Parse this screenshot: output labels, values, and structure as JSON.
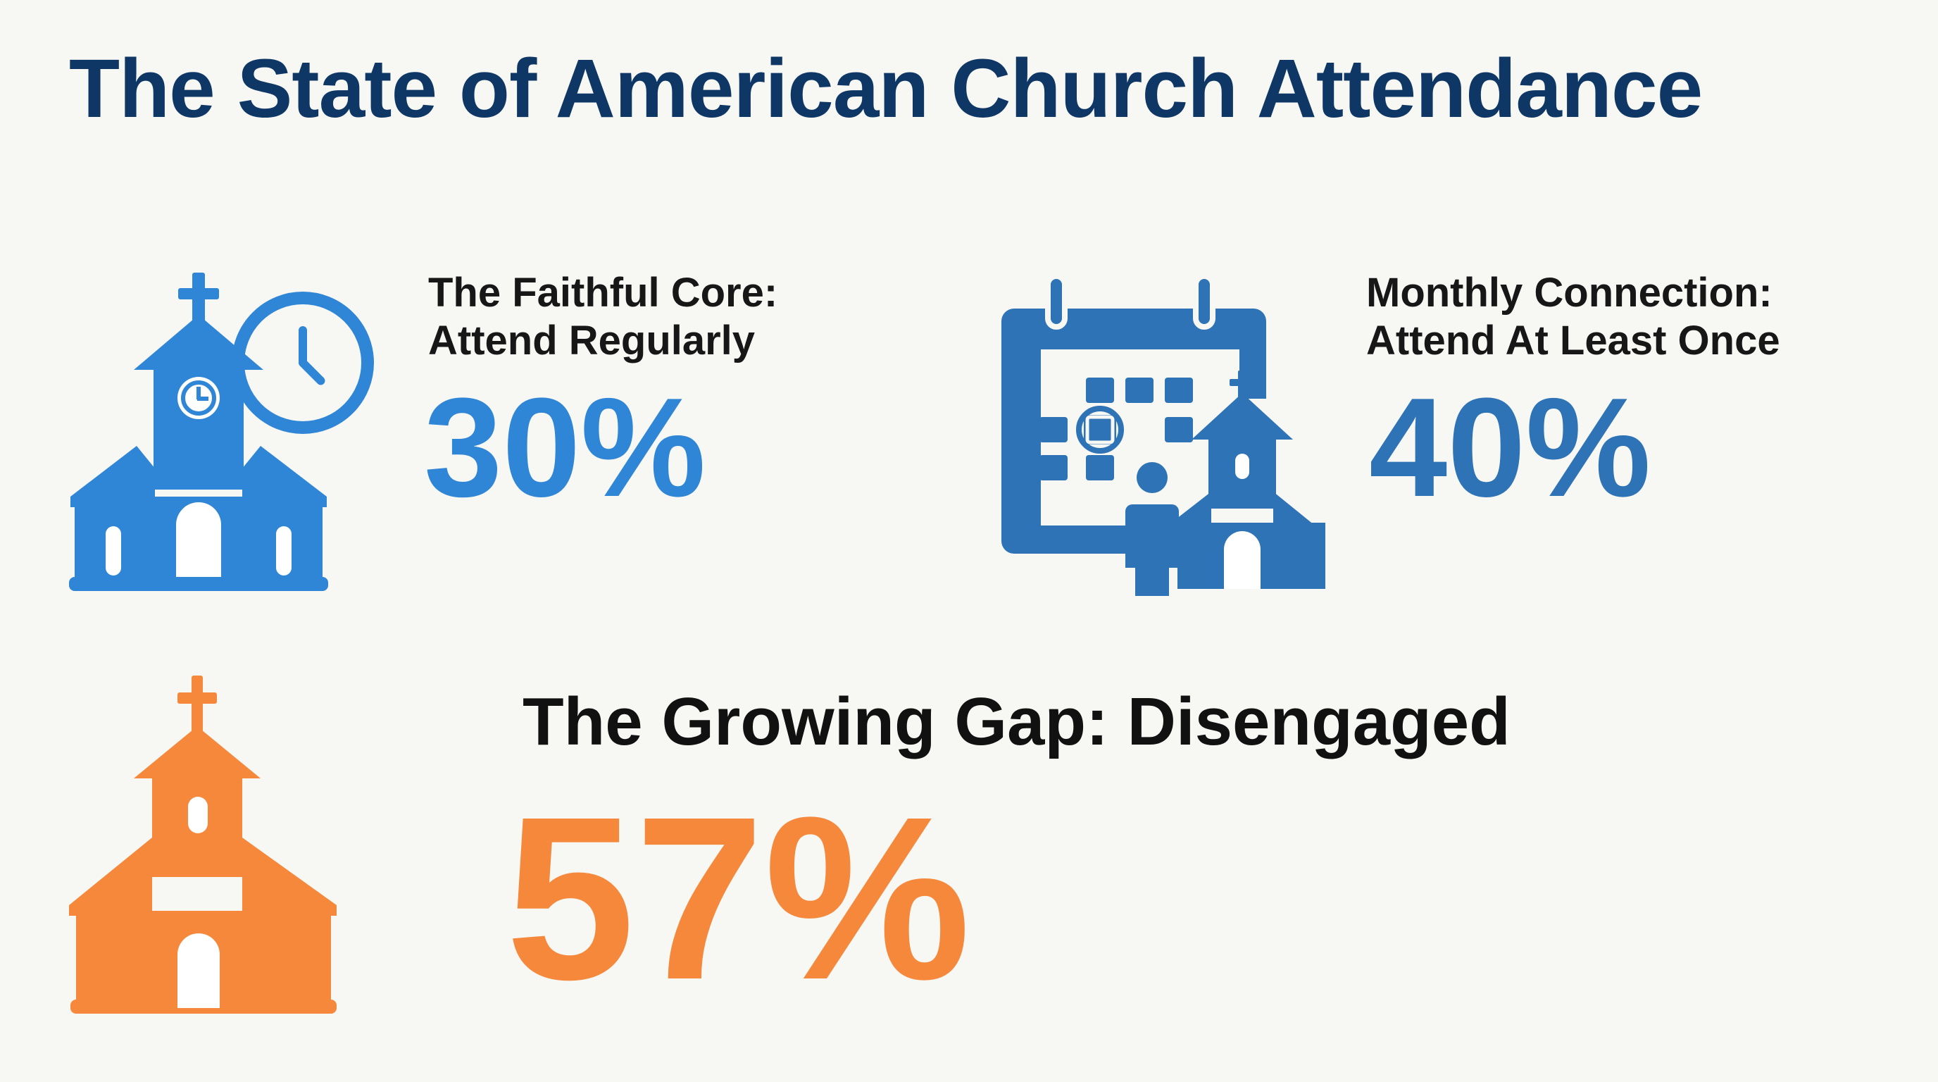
{
  "title": "The State of American Church Attendance",
  "stats": [
    {
      "label_line1": "The Faithful Core:",
      "label_line2": "Attend Regularly",
      "value": "30%",
      "color": "#2f86d6",
      "icon": "church-with-clock-icon"
    },
    {
      "label_line1": "Monthly Connection:",
      "label_line2": "Attend At Least Once",
      "value": "40%",
      "color": "#2d73b6",
      "icon": "calendar-with-church-icon"
    },
    {
      "label": "The Growing Gap: Disengaged",
      "value": "57%",
      "color": "#f5883b",
      "icon": "church-icon"
    }
  ]
}
